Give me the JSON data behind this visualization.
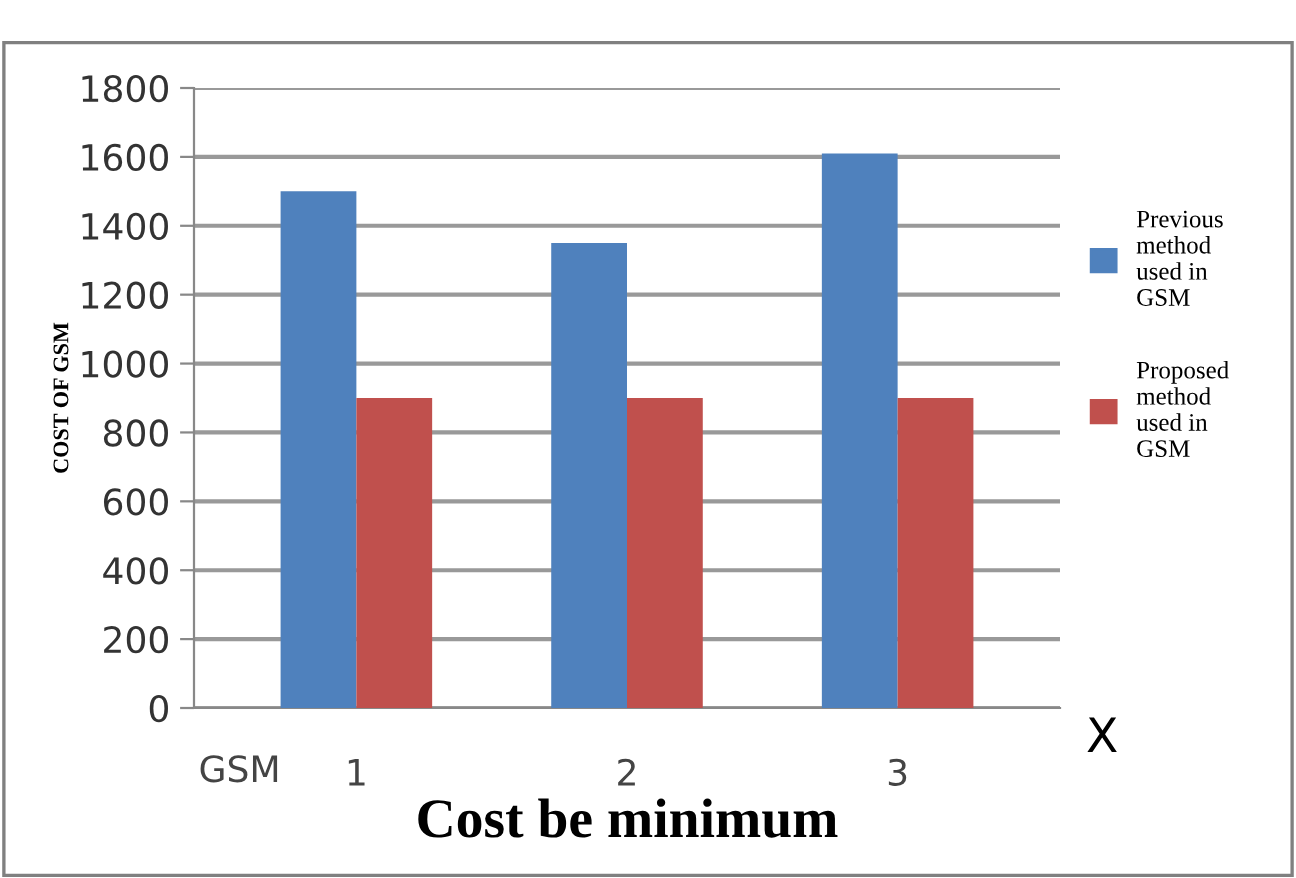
{
  "chart_data": {
    "type": "bar",
    "xlabel": "Cost be minimum",
    "ylabel": "COST OF GSM",
    "categories": [
      "1",
      "2",
      "3"
    ],
    "series": [
      {
        "name": "Previous method used in GSM",
        "color": "#4f81bd",
        "values": [
          1500,
          1350,
          1610
        ]
      },
      {
        "name": "Proposed method used in GSM",
        "color": "#c0504d",
        "values": [
          900,
          900,
          900
        ]
      }
    ],
    "ylim": [
      0,
      1800
    ],
    "yticks": [
      0,
      200,
      400,
      600,
      800,
      1000,
      1200,
      1400,
      1600,
      1800
    ],
    "grid": "y",
    "legend": "right",
    "annotations": [
      "GSM",
      "X"
    ]
  }
}
